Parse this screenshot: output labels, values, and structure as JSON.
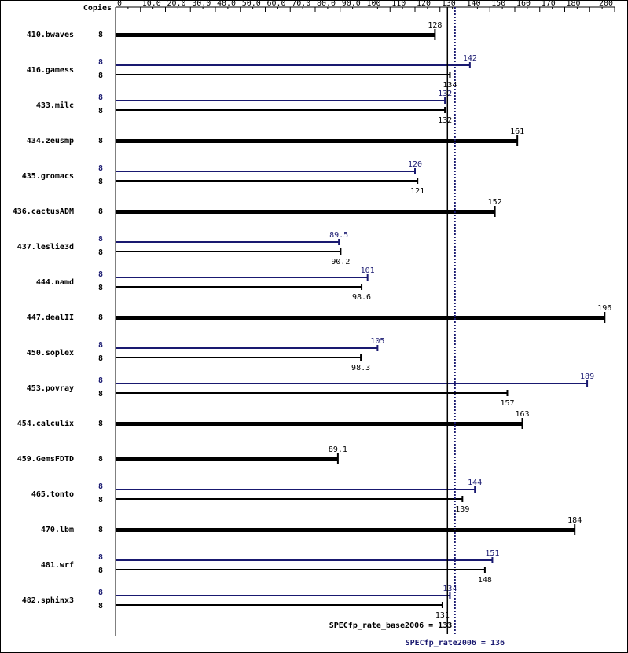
{
  "chart_data": {
    "type": "bar",
    "orientation": "horizontal",
    "copies_label": "Copies",
    "xlim": [
      0,
      200
    ],
    "ticks": [
      "0",
      "10.0",
      "20.0",
      "30.0",
      "40.0",
      "50.0",
      "60.0",
      "70.0",
      "80.0",
      "90.0",
      "100",
      "110",
      "120",
      "130",
      "140",
      "150",
      "160",
      "170",
      "180",
      "200"
    ],
    "tick_values": [
      0,
      10,
      20,
      30,
      40,
      50,
      60,
      70,
      80,
      90,
      100,
      110,
      120,
      130,
      140,
      150,
      160,
      170,
      180,
      200
    ],
    "colors": {
      "base": "#000000",
      "peak": "#191970",
      "frame": "#000000"
    },
    "series": [
      {
        "key": "peak",
        "color": "#191970"
      },
      {
        "key": "base",
        "color": "#000000"
      }
    ],
    "benchmarks": [
      {
        "name": "410.bwaves",
        "base_copies": "8",
        "base": 128,
        "base_label": "128"
      },
      {
        "name": "416.gamess",
        "peak_copies": "8",
        "peak": 142,
        "peak_label": "142",
        "base_copies": "8",
        "base": 134,
        "base_label": "134"
      },
      {
        "name": "433.milc",
        "peak_copies": "8",
        "peak": 132,
        "peak_label": "132",
        "base_copies": "8",
        "base": 132,
        "base_label": "132"
      },
      {
        "name": "434.zeusmp",
        "base_copies": "8",
        "base": 161,
        "base_label": "161"
      },
      {
        "name": "435.gromacs",
        "peak_copies": "8",
        "peak": 120,
        "peak_label": "120",
        "base_copies": "8",
        "base": 121,
        "base_label": "121"
      },
      {
        "name": "436.cactusADM",
        "base_copies": "8",
        "base": 152,
        "base_label": "152"
      },
      {
        "name": "437.leslie3d",
        "peak_copies": "8",
        "peak": 89.5,
        "peak_label": "89.5",
        "base_copies": "8",
        "base": 90.2,
        "base_label": "90.2"
      },
      {
        "name": "444.namd",
        "peak_copies": "8",
        "peak": 101,
        "peak_label": "101",
        "base_copies": "8",
        "base": 98.6,
        "base_label": "98.6"
      },
      {
        "name": "447.dealII",
        "base_copies": "8",
        "base": 196,
        "base_label": "196"
      },
      {
        "name": "450.soplex",
        "peak_copies": "8",
        "peak": 105,
        "peak_label": "105",
        "base_copies": "8",
        "base": 98.3,
        "base_label": "98.3"
      },
      {
        "name": "453.povray",
        "peak_copies": "8",
        "peak": 189,
        "peak_label": "189",
        "base_copies": "8",
        "base": 157,
        "base_label": "157"
      },
      {
        "name": "454.calculix",
        "base_copies": "8",
        "base": 163,
        "base_label": "163"
      },
      {
        "name": "459.GemsFDTD",
        "base_copies": "8",
        "base": 89.1,
        "base_label": "89.1"
      },
      {
        "name": "465.tonto",
        "peak_copies": "8",
        "peak": 144,
        "peak_label": "144",
        "base_copies": "8",
        "base": 139,
        "base_label": "139"
      },
      {
        "name": "470.lbm",
        "base_copies": "8",
        "base": 184,
        "base_label": "184"
      },
      {
        "name": "481.wrf",
        "peak_copies": "8",
        "peak": 151,
        "peak_label": "151",
        "base_copies": "8",
        "base": 148,
        "base_label": "148"
      },
      {
        "name": "482.sphinx3",
        "peak_copies": "8",
        "peak": 134,
        "peak_label": "134",
        "base_copies": "8",
        "base": 131,
        "base_label": "131"
      }
    ],
    "reference_lines": [
      {
        "key": "base",
        "value": 133,
        "label": "SPECfp_rate_base2006 = 133",
        "style": "solid"
      },
      {
        "key": "peak",
        "value": 136,
        "label": "SPECfp_rate2006 = 136",
        "style": "dotted"
      }
    ]
  }
}
